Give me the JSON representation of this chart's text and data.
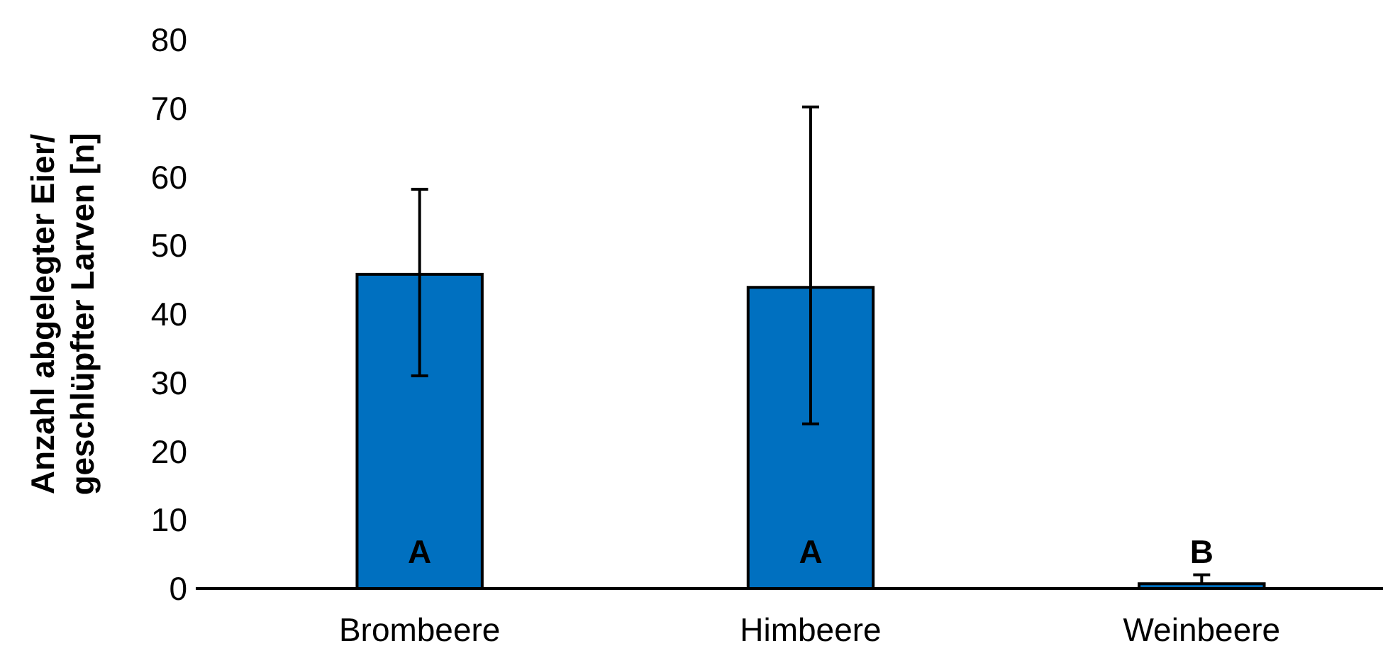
{
  "chart_data": {
    "type": "bar",
    "ylabel": "Anzahl abgelegter Eier/\ngeschlüpfter Larven [n]",
    "categories": [
      "Brombeere",
      "Himbeere",
      "Weinbeere"
    ],
    "values": [
      45.8,
      43.9,
      0.7
    ],
    "errors": [
      [
        31,
        58.2
      ],
      [
        24,
        70.2
      ],
      [
        0.7,
        2
      ]
    ],
    "color": "#0070c0",
    "ylim": [
      0,
      80
    ],
    "yticks": [
      0,
      10,
      20,
      30,
      40,
      50,
      60,
      70,
      80
    ],
    "annotations": [
      "A",
      "A",
      "B"
    ]
  }
}
